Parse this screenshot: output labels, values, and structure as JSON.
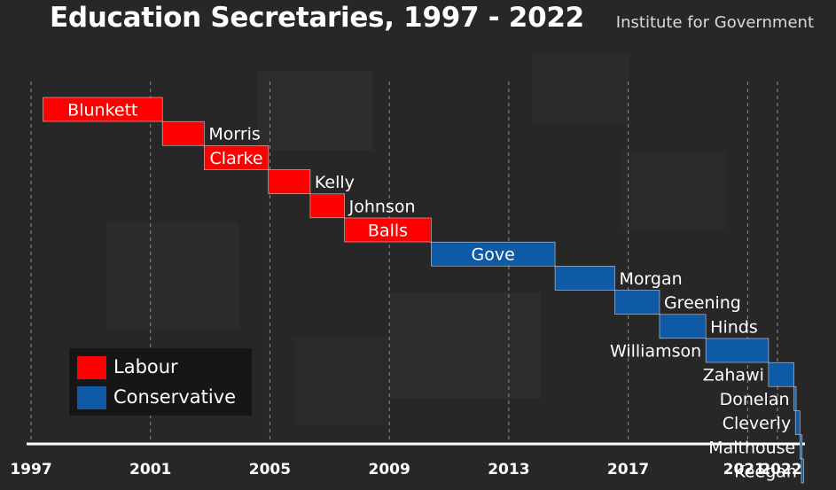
{
  "header": {
    "title": "Education Secretaries, 1997 - 2022",
    "source": "Institute for Government"
  },
  "legend": [
    {
      "label": "Labour",
      "color": "#ff0000"
    },
    {
      "label": "Conservative",
      "color": "#0f5aa6"
    }
  ],
  "chart_data": {
    "type": "bar",
    "title": "Education Secretaries, 1997 - 2022",
    "xlabel": "",
    "ylabel": "",
    "xlim": [
      1997,
      2022.5
    ],
    "x_ticks": [
      "1997",
      "2001",
      "2005",
      "2009",
      "2013",
      "2017",
      "2021",
      "2022"
    ],
    "grid": true,
    "legend_position": "bottom-left",
    "series": [
      {
        "name": "Labour",
        "color": "#ff0000"
      },
      {
        "name": "Conservative",
        "color": "#0f5aa6"
      }
    ],
    "secretaries": [
      {
        "name": "Blunkett",
        "party": "Labour",
        "start": 1997.4,
        "end": 2001.4
      },
      {
        "name": "Morris",
        "party": "Labour",
        "start": 2001.4,
        "end": 2002.8
      },
      {
        "name": "Clarke",
        "party": "Labour",
        "start": 2002.8,
        "end": 2004.95
      },
      {
        "name": "Kelly",
        "party": "Labour",
        "start": 2004.95,
        "end": 2006.35
      },
      {
        "name": "Johnson",
        "party": "Labour",
        "start": 2006.35,
        "end": 2007.5
      },
      {
        "name": "Balls",
        "party": "Labour",
        "start": 2007.5,
        "end": 2010.4
      },
      {
        "name": "Gove",
        "party": "Conservative",
        "start": 2010.4,
        "end": 2014.55
      },
      {
        "name": "Morgan",
        "party": "Conservative",
        "start": 2014.55,
        "end": 2016.55
      },
      {
        "name": "Greening",
        "party": "Conservative",
        "start": 2016.55,
        "end": 2018.05
      },
      {
        "name": "Hinds",
        "party": "Conservative",
        "start": 2018.05,
        "end": 2019.6
      },
      {
        "name": "Williamson",
        "party": "Conservative",
        "start": 2019.6,
        "end": 2021.7
      },
      {
        "name": "Zahawi",
        "party": "Conservative",
        "start": 2021.7,
        "end": 2022.55
      },
      {
        "name": "Donelan",
        "party": "Conservative",
        "start": 2022.55,
        "end": 2022.6
      },
      {
        "name": "Cleverly",
        "party": "Conservative",
        "start": 2022.6,
        "end": 2022.75
      },
      {
        "name": "Malthouse",
        "party": "Conservative",
        "start": 2022.75,
        "end": 2022.8
      },
      {
        "name": "Keegan",
        "party": "Conservative",
        "start": 2022.8,
        "end": 2022.85
      }
    ]
  }
}
